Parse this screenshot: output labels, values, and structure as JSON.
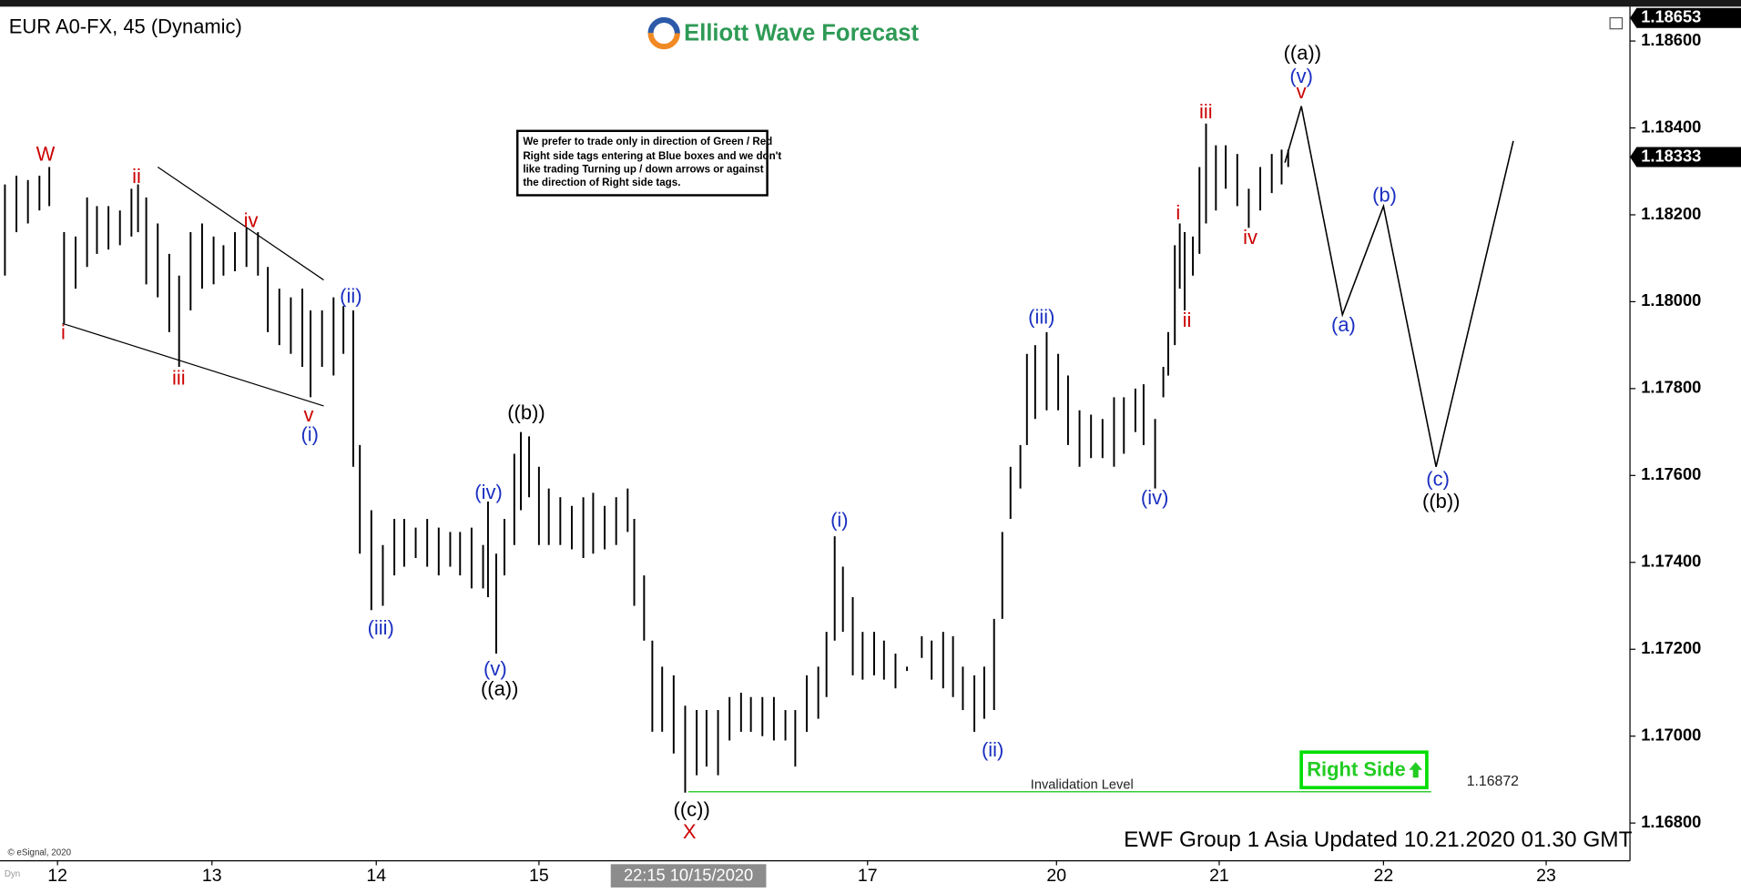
{
  "chart_data": {
    "type": "ohlc",
    "title": "EUR A0-FX, 45 (Dynamic)",
    "logo": "Elliott Wave Forecast",
    "x": [
      -0.32,
      -0.25,
      -0.18,
      -0.11,
      -0.05,
      0.04,
      0.11,
      0.18,
      0.24,
      0.31,
      0.38,
      0.45,
      0.49,
      0.54,
      0.61,
      0.68,
      0.74,
      0.81,
      0.88,
      0.95,
      1.01,
      1.08,
      1.15,
      1.22,
      1.28,
      1.35,
      1.42,
      1.49,
      1.54,
      1.61,
      1.68,
      1.74,
      1.8,
      1.84,
      1.91,
      1.98,
      2.05,
      2.11,
      2.18,
      2.25,
      2.32,
      2.39,
      2.45,
      2.52,
      2.59,
      2.62,
      2.67,
      2.72,
      2.78,
      2.82,
      2.87,
      2.93,
      2.99,
      3.06,
      3.13,
      3.2,
      3.26,
      3.33,
      3.4,
      3.47,
      3.51,
      3.57,
      3.62,
      3.68,
      3.75,
      3.82,
      3.89,
      3.95,
      4.02,
      4.09,
      4.16,
      4.22,
      4.29,
      4.36,
      4.43,
      4.49,
      4.56,
      4.63,
      4.68,
      4.73,
      4.78,
      4.84,
      4.9,
      4.97,
      5.03,
      5.1,
      5.17,
      5.26,
      5.32,
      5.39,
      5.45,
      5.51,
      5.58,
      5.64,
      5.7,
      5.75,
      5.8,
      5.86,
      5.9,
      5.95,
      6.02,
      6.09,
      6.15,
      6.22,
      6.29,
      6.36,
      6.43,
      6.49,
      6.56,
      6.61,
      6.68,
      6.73,
      6.76,
      6.8,
      6.83,
      6.86,
      6.91,
      6.95,
      6.99,
      7.05,
      7.11,
      7.18,
      7.25,
      7.32,
      7.39,
      7.45,
      7.49
    ],
    "high": [
      1.1827,
      1.1829,
      1.1828,
      1.1829,
      1.1831,
      1.1816,
      1.1815,
      1.1824,
      1.1822,
      1.1822,
      1.1821,
      1.1826,
      1.1827,
      1.1824,
      1.1818,
      1.1811,
      1.1806,
      1.1816,
      1.1818,
      1.1815,
      1.1813,
      1.1816,
      1.1817,
      1.1816,
      1.1808,
      1.1803,
      1.1801,
      1.1803,
      1.1798,
      1.1798,
      1.1801,
      1.1799,
      1.1798,
      1.1767,
      1.1752,
      1.1744,
      1.175,
      1.175,
      1.1748,
      1.175,
      1.1748,
      1.1747,
      1.1747,
      1.1748,
      1.1744,
      1.1754,
      1.1742,
      1.175,
      1.1765,
      1.177,
      1.1769,
      1.1762,
      1.1757,
      1.1755,
      1.1753,
      1.1755,
      1.1756,
      1.1753,
      1.1755,
      1.1757,
      1.175,
      1.1737,
      1.1722,
      1.1716,
      1.1714,
      1.1707,
      1.1706,
      1.1706,
      1.1706,
      1.1709,
      1.171,
      1.1709,
      1.1709,
      1.1709,
      1.1706,
      1.1706,
      1.1714,
      1.1716,
      1.1724,
      1.1746,
      1.1739,
      1.1732,
      1.1724,
      1.1724,
      1.1722,
      1.1719,
      1.1716,
      1.1723,
      1.1722,
      1.1724,
      1.1723,
      1.1716,
      1.1714,
      1.1716,
      1.1727,
      1.1747,
      1.1762,
      1.1767,
      1.1788,
      1.179,
      1.1793,
      1.1788,
      1.1783,
      1.1775,
      1.1774,
      1.1773,
      1.1778,
      1.1778,
      1.178,
      1.1781,
      1.1773,
      1.1785,
      1.1793,
      1.1813,
      1.1818,
      1.1816,
      1.1815,
      1.1831,
      1.1841,
      1.1836,
      1.1836,
      1.1834,
      1.1826,
      1.1831,
      1.1834,
      1.1835,
      1.1835
    ],
    "low": [
      1.1806,
      1.1816,
      1.1818,
      1.1821,
      1.1822,
      1.1795,
      1.1803,
      1.1808,
      1.1811,
      1.1812,
      1.1813,
      1.1815,
      1.1816,
      1.1804,
      1.1801,
      1.1793,
      1.1785,
      1.1798,
      1.1803,
      1.1804,
      1.1806,
      1.1807,
      1.1808,
      1.1806,
      1.1793,
      1.179,
      1.1788,
      1.1785,
      1.1778,
      1.1785,
      1.1783,
      1.1788,
      1.1762,
      1.1742,
      1.1729,
      1.173,
      1.1737,
      1.1739,
      1.1741,
      1.1739,
      1.1737,
      1.1739,
      1.1737,
      1.1734,
      1.1734,
      1.1732,
      1.1719,
      1.1737,
      1.1744,
      1.1752,
      1.1755,
      1.1744,
      1.1744,
      1.1744,
      1.1743,
      1.1741,
      1.1742,
      1.1743,
      1.1744,
      1.1747,
      1.173,
      1.1722,
      1.1701,
      1.1701,
      1.1696,
      1.1687,
      1.1691,
      1.1693,
      1.1691,
      1.1699,
      1.1701,
      1.1701,
      1.17,
      1.1699,
      1.1699,
      1.1693,
      1.1701,
      1.1704,
      1.1709,
      1.1722,
      1.1724,
      1.1714,
      1.1713,
      1.1714,
      1.1713,
      1.1711,
      1.1715,
      1.1718,
      1.1713,
      1.1711,
      1.1709,
      1.1706,
      1.1701,
      1.1704,
      1.1706,
      1.1727,
      1.175,
      1.1757,
      1.1767,
      1.1773,
      1.1775,
      1.1775,
      1.1767,
      1.1762,
      1.1764,
      1.1764,
      1.1762,
      1.1765,
      1.177,
      1.1767,
      1.1757,
      1.1778,
      1.1783,
      1.179,
      1.1803,
      1.1798,
      1.1806,
      1.1811,
      1.1818,
      1.1821,
      1.1826,
      1.1822,
      1.1817,
      1.1821,
      1.1825,
      1.1827,
      1.1831
    ],
    "color": "#000000",
    "xlim": [
      -0.35,
      9.57
    ],
    "ylim": [
      1.16713,
      1.18674
    ],
    "xticks": [
      {
        "value": 0,
        "label": "12"
      },
      {
        "value": 0.94,
        "label": "13"
      },
      {
        "value": 1.94,
        "label": "14"
      },
      {
        "value": 2.93,
        "label": "15"
      },
      {
        "value": 4.93,
        "label": "17"
      },
      {
        "value": 6.08,
        "label": "20"
      },
      {
        "value": 7.07,
        "label": "21"
      },
      {
        "value": 8.07,
        "label": "22"
      },
      {
        "value": 9.06,
        "label": "23"
      }
    ],
    "yticks": [
      {
        "value": 1.186,
        "label": "1.18600"
      },
      {
        "value": 1.184,
        "label": "1.18400"
      },
      {
        "value": 1.182,
        "label": "1.18200"
      },
      {
        "value": 1.18,
        "label": "1.18000"
      },
      {
        "value": 1.178,
        "label": "1.17800"
      },
      {
        "value": 1.176,
        "label": "1.17600"
      },
      {
        "value": 1.174,
        "label": "1.17400"
      },
      {
        "value": 1.172,
        "label": "1.17200"
      },
      {
        "value": 1.17,
        "label": "1.17000"
      },
      {
        "value": 1.168,
        "label": "1.16800"
      }
    ],
    "crosshair": {
      "value": 3.84,
      "label": "22:15 10/15/2020"
    },
    "high_price": 1.18653,
    "last_price": 1.18333,
    "forecast": {
      "x": [
        7.47,
        7.57,
        7.82,
        8.07,
        8.39,
        8.86
      ],
      "values": [
        1.1832,
        1.1845,
        1.1797,
        1.1822,
        1.1762,
        1.1837
      ]
    },
    "trendlines": [
      {
        "x": [
          0.61,
          1.62
        ],
        "values": [
          1.1831,
          1.1805
        ]
      },
      {
        "x": [
          0.03,
          1.62
        ],
        "values": [
          1.1795,
          1.1776
        ]
      }
    ],
    "invalidation": {
      "value": 1.16872,
      "text": "Invalidation Level",
      "x": [
        3.84,
        8.36
      ],
      "color": "#33cc33"
    },
    "annotations": [
      {
        "text": "W",
        "color": "#cc0000"
      },
      {
        "text": "ii",
        "color": "#cc0000"
      },
      {
        "text": "iv",
        "color": "#cc0000"
      },
      {
        "text": "i",
        "color": "#cc0000"
      },
      {
        "text": "iii",
        "color": "#cc0000"
      },
      {
        "text": "v",
        "color": "#cc0000"
      },
      {
        "text": "(i)",
        "color": "#1a2fc0"
      },
      {
        "text": "(ii)",
        "color": "#1a2fc0"
      },
      {
        "text": "(iii)",
        "color": "#1a2fc0"
      },
      {
        "text": "(iv)",
        "color": "#1a2fc0"
      },
      {
        "text": "(v)",
        "color": "#1a2fc0"
      },
      {
        "text": "((a))",
        "color": "#000000"
      },
      {
        "text": "((b))",
        "color": "#000000"
      },
      {
        "text": "((c))",
        "color": "#000000"
      },
      {
        "text": "X",
        "color": "#cc0000"
      },
      {
        "text": "(i)",
        "color": "#1a2fc0"
      },
      {
        "text": "(ii)",
        "color": "#1a2fc0"
      },
      {
        "text": "(iii)",
        "color": "#1a2fc0"
      },
      {
        "text": "(iv)",
        "color": "#1a2fc0"
      },
      {
        "text": "i",
        "color": "#cc0000"
      },
      {
        "text": "ii",
        "color": "#cc0000"
      },
      {
        "text": "iii",
        "color": "#cc0000"
      },
      {
        "text": "iv",
        "color": "#cc0000"
      },
      {
        "text": "v",
        "color": "#cc0000"
      },
      {
        "text": "(v)",
        "color": "#1a2fc0"
      },
      {
        "text": "((a))",
        "color": "#000000"
      },
      {
        "text": "(b)",
        "color": "#1a2fc0"
      },
      {
        "text": "(a)",
        "color": "#1a2fc0"
      },
      {
        "text": "(c)",
        "color": "#1a2fc0"
      },
      {
        "text": "((b))",
        "color": "#000000"
      }
    ],
    "note": [
      "We prefer to trade only in direction of Green / Red",
      "Right side tags entering at Blue boxes and we don't",
      "like trading Turning up / down arrows or against",
      "the direction of Right side tags."
    ],
    "right_side": "Right Side",
    "footer": "EWF Group 1 Asia Updated 10.21.2020 01.30 GMT",
    "copyright": "© eSignal, 2020",
    "corner": "Dyn"
  }
}
